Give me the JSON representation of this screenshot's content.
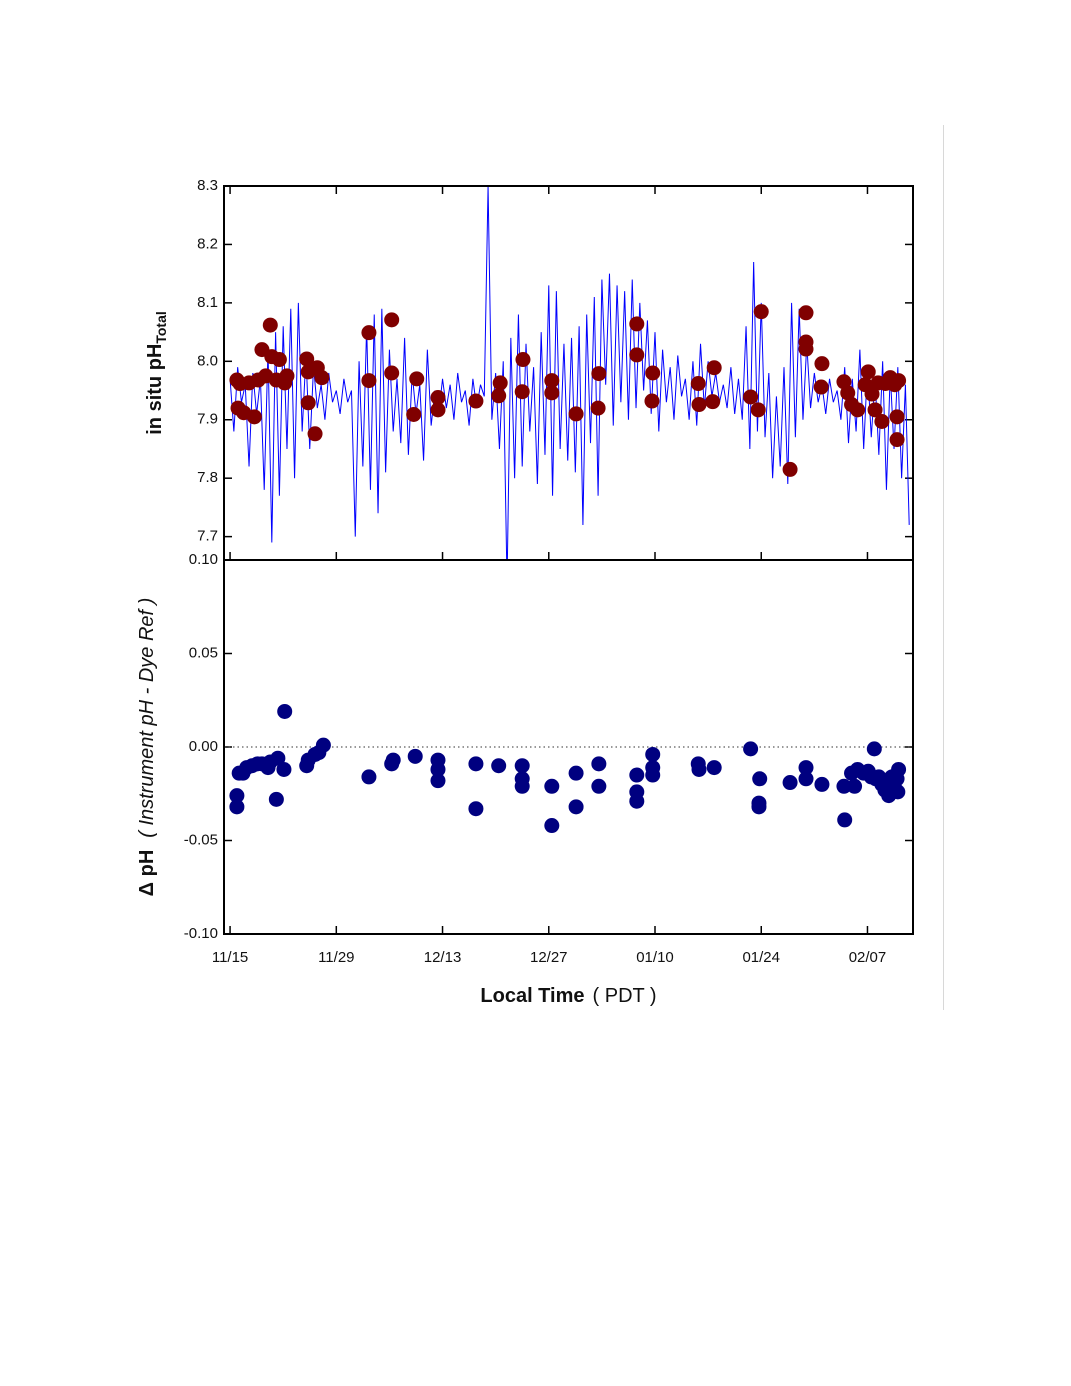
{
  "chart_data": [
    {
      "type": "line",
      "y_label": "in situ pH",
      "y_label_subscript": "Total",
      "xlim": [
        -0.8,
        90
      ],
      "ylim": [
        7.66,
        8.3
      ],
      "yticks": [
        7.7,
        7.8,
        7.9,
        {
          "value": 8,
          "label": "8.0"
        },
        8.1,
        8.2,
        8.3
      ],
      "series": [
        {
          "type": "line",
          "color": "#0000ff",
          "x": [
            0,
            0.5,
            1,
            1.5,
            2,
            2.5,
            3,
            3.5,
            4,
            4.5,
            5,
            5.5,
            6,
            6.5,
            7,
            7.5,
            8,
            8.5,
            9,
            9.5,
            10,
            10.5,
            11,
            11.5,
            12,
            12.5,
            13,
            13.5,
            14,
            14.5,
            15,
            15.5,
            16,
            16.5,
            17,
            17.5,
            18,
            18.5,
            19,
            19.5,
            20,
            20.5,
            21,
            21.5,
            22,
            22.5,
            23,
            23.5,
            24,
            24.5,
            25,
            25.5,
            26,
            26.5,
            27,
            27.5,
            28,
            28.5,
            29,
            29.5,
            30,
            30.5,
            31,
            31.5,
            32,
            32.5,
            33,
            33.5,
            34,
            34.5,
            35,
            35.5,
            36,
            36.5,
            37,
            37.5,
            38,
            38.5,
            39,
            39.5,
            40,
            40.5,
            41,
            41.5,
            42,
            42.5,
            43,
            43.5,
            44,
            44.5,
            45,
            45.5,
            46,
            46.5,
            47,
            47.5,
            48,
            48.5,
            49,
            49.5,
            50,
            50.5,
            51,
            51.5,
            52,
            52.5,
            53,
            53.5,
            54,
            54.5,
            55,
            55.5,
            56,
            56.5,
            57,
            57.5,
            58,
            58.5,
            59,
            59.5,
            60,
            60.5,
            61,
            61.5,
            62,
            62.5,
            63,
            63.5,
            64,
            64.5,
            65,
            65.5,
            66,
            66.5,
            67,
            67.5,
            68,
            68.5,
            69,
            69.5,
            70,
            70.5,
            71,
            71.5,
            72,
            72.5,
            73,
            73.5,
            74,
            74.5,
            75,
            75.5,
            76,
            76.5,
            77,
            77.5,
            78,
            78.5,
            79,
            79.5,
            80,
            80.5,
            81,
            81.5,
            82,
            82.5,
            83,
            83.5,
            84,
            84.5,
            85,
            85.5,
            86,
            86.5,
            87,
            87.5,
            88,
            88.5,
            89,
            89.5
          ],
          "values": [
            7.97,
            7.88,
            7.99,
            7.93,
            7.96,
            7.82,
            7.98,
            7.91,
            7.97,
            7.78,
            8.02,
            7.69,
            8.05,
            7.77,
            8.06,
            7.85,
            8.09,
            7.8,
            8.1,
            7.88,
            8.01,
            7.85,
            7.99,
            7.92,
            7.96,
            7.9,
            7.98,
            7.93,
            7.95,
            7.91,
            7.97,
            7.93,
            7.95,
            7.7,
            8.0,
            7.82,
            8.06,
            7.78,
            8.08,
            7.74,
            8.09,
            7.81,
            8.02,
            7.88,
            7.97,
            7.86,
            8.04,
            7.84,
            7.98,
            7.91,
            7.96,
            7.83,
            8.02,
            7.89,
            7.95,
            7.91,
            7.97,
            7.92,
            7.96,
            7.9,
            7.98,
            7.93,
            7.95,
            7.89,
            7.97,
            7.92,
            7.96,
            7.94,
            8.3,
            7.9,
            7.98,
            7.85,
            8.0,
            7.62,
            8.04,
            7.8,
            8.08,
            7.82,
            8.03,
            7.88,
            7.99,
            7.79,
            8.05,
            7.84,
            8.13,
            7.77,
            8.12,
            7.85,
            8.03,
            7.83,
            8.04,
            7.81,
            8.06,
            7.72,
            8.08,
            7.86,
            8.11,
            7.77,
            8.14,
            7.96,
            8.15,
            7.89,
            8.13,
            7.93,
            8.12,
            7.9,
            8.14,
            7.92,
            8.1,
            7.95,
            8.07,
            7.91,
            8.05,
            7.88,
            8.02,
            7.93,
            7.99,
            7.9,
            8.01,
            7.94,
            7.97,
            7.9,
            8.0,
            7.89,
            8.03,
            7.92,
            8.0,
            7.94,
            7.98,
            7.93,
            7.96,
            7.92,
            7.99,
            7.91,
            7.97,
            7.9,
            8.06,
            7.85,
            8.17,
            7.88,
            8.1,
            7.87,
            7.98,
            7.8,
            7.94,
            7.82,
            7.99,
            7.79,
            8.1,
            7.87,
            8.09,
            7.9,
            8.03,
            7.92,
            7.98,
            7.93,
            7.96,
            7.91,
            7.97,
            7.93,
            7.95,
            7.9,
            7.99,
            7.86,
            7.97,
            7.88,
            8.02,
            7.85,
            7.99,
            7.87,
            7.97,
            7.84,
            8.0,
            7.78,
            7.98,
            7.85,
            7.99,
            7.8,
            7.96,
            7.72
          ]
        },
        {
          "type": "scatter",
          "color": "#800000",
          "x": [
            0.9,
            1.05,
            1.3,
            1.8,
            2.5,
            3.2,
            3.7,
            4.2,
            4.7,
            5.3,
            5.5,
            6.1,
            6.5,
            7.2,
            7.5,
            10.1,
            10.3,
            10.3,
            11.2,
            11.5,
            12.1,
            18.3,
            18.3,
            21.3,
            21.3,
            24.2,
            24.6,
            27.4,
            27.4,
            32.4,
            35.4,
            35.6,
            38.5,
            38.6,
            42.4,
            42.4,
            45.6,
            48.5,
            48.6,
            53.6,
            53.6,
            55.7,
            55.6,
            61.7,
            61.8,
            63.8,
            63.6,
            68.6,
            69.6,
            70.0,
            73.8,
            75.9,
            75.9,
            75.9,
            78.0,
            77.9,
            80.9,
            81.4,
            81.9,
            82.7,
            83.7,
            84.1,
            84.6,
            85.0,
            85.4,
            85.9,
            86.4,
            87.0,
            87.6,
            87.9,
            87.9,
            88.1
          ],
          "values": [
            7.968,
            7.92,
            7.962,
            7.912,
            7.963,
            7.905,
            7.968,
            8.02,
            7.975,
            8.062,
            8.008,
            7.968,
            8.003,
            7.963,
            7.975,
            8.004,
            7.982,
            7.929,
            7.876,
            7.989,
            7.972,
            8.049,
            7.967,
            8.071,
            7.98,
            7.909,
            7.97,
            7.938,
            7.917,
            7.932,
            7.941,
            7.963,
            7.948,
            8.003,
            7.967,
            7.946,
            7.91,
            7.92,
            7.979,
            8.064,
            8.011,
            7.98,
            7.932,
            7.962,
            7.926,
            7.989,
            7.931,
            7.939,
            7.917,
            8.085,
            7.815,
            8.083,
            8.033,
            8.021,
            7.996,
            7.956,
            7.965,
            7.946,
            7.926,
            7.917,
            7.96,
            7.982,
            7.944,
            7.917,
            7.963,
            7.897,
            7.962,
            7.972,
            7.96,
            7.905,
            7.866,
            7.967
          ]
        }
      ]
    },
    {
      "type": "scatter",
      "y_label": "Δ pH",
      "y_label_note": "( Instrument pH - Dye Ref )",
      "x_label": "Local Time",
      "x_label_note": "( PDT )",
      "xlim": [
        -0.8,
        90
      ],
      "ylim": [
        -0.1,
        0.1
      ],
      "xticks": [
        {
          "value": 0,
          "label": "11/15"
        },
        {
          "value": 14,
          "label": "11/29"
        },
        {
          "value": 28,
          "label": "12/13"
        },
        {
          "value": 42,
          "label": "12/27"
        },
        {
          "value": 56,
          "label": "01/10"
        },
        {
          "value": 70,
          "label": "01/24"
        },
        {
          "value": 84,
          "label": "02/07"
        }
      ],
      "yticks": [
        {
          "value": -0.1,
          "label": "-0.10"
        },
        {
          "value": -0.05,
          "label": "-0.05"
        },
        {
          "value": 0,
          "label": "0.00"
        },
        {
          "value": 0.05,
          "label": "0.05"
        },
        {
          "value": 0.1,
          "label": "0.10"
        }
      ],
      "reference_line": 0,
      "series": [
        {
          "type": "scatter",
          "color": "#000080",
          "x": [
            0.9,
            0.9,
            1.2,
            1.7,
            2.2,
            2.9,
            3.6,
            4.2,
            5.0,
            5.3,
            6.1,
            6.3,
            7.1,
            7.2,
            10.1,
            10.3,
            11.2,
            11.7,
            12.3,
            18.3,
            21.3,
            21.5,
            24.4,
            27.4,
            27.4,
            27.4,
            32.4,
            32.4,
            35.4,
            38.5,
            38.5,
            38.5,
            42.4,
            42.4,
            45.6,
            45.6,
            48.6,
            48.6,
            53.6,
            53.6,
            53.6,
            55.7,
            55.7,
            55.7,
            61.7,
            61.8,
            63.8,
            68.6,
            69.8,
            69.7,
            69.7,
            73.8,
            75.9,
            75.9,
            78.0,
            80.9,
            81.0,
            81.9,
            82.3,
            82.7,
            83.5,
            84.1,
            84.5,
            84.9,
            85.1,
            85.5,
            85.9,
            86.3,
            86.8,
            87.2,
            87.6,
            87.9,
            88.0,
            88.1
          ],
          "values": [
            -0.032,
            -0.026,
            -0.014,
            -0.014,
            -0.011,
            -0.01,
            -0.009,
            -0.009,
            -0.011,
            -0.008,
            -0.028,
            -0.006,
            -0.012,
            0.019,
            -0.01,
            -0.007,
            -0.004,
            -0.003,
            0.001,
            -0.016,
            -0.009,
            -0.007,
            -0.005,
            -0.007,
            -0.012,
            -0.018,
            -0.009,
            -0.033,
            -0.01,
            -0.01,
            -0.017,
            -0.021,
            -0.021,
            -0.042,
            -0.014,
            -0.032,
            -0.009,
            -0.021,
            -0.015,
            -0.024,
            -0.029,
            -0.004,
            -0.011,
            -0.015,
            -0.009,
            -0.012,
            -0.011,
            -0.001,
            -0.017,
            -0.03,
            -0.032,
            -0.019,
            -0.011,
            -0.017,
            -0.02,
            -0.021,
            -0.039,
            -0.014,
            -0.021,
            -0.012,
            -0.014,
            -0.013,
            -0.016,
            -0.001,
            -0.017,
            -0.016,
            -0.02,
            -0.023,
            -0.026,
            -0.016,
            -0.022,
            -0.017,
            -0.024,
            -0.012
          ]
        }
      ]
    }
  ]
}
